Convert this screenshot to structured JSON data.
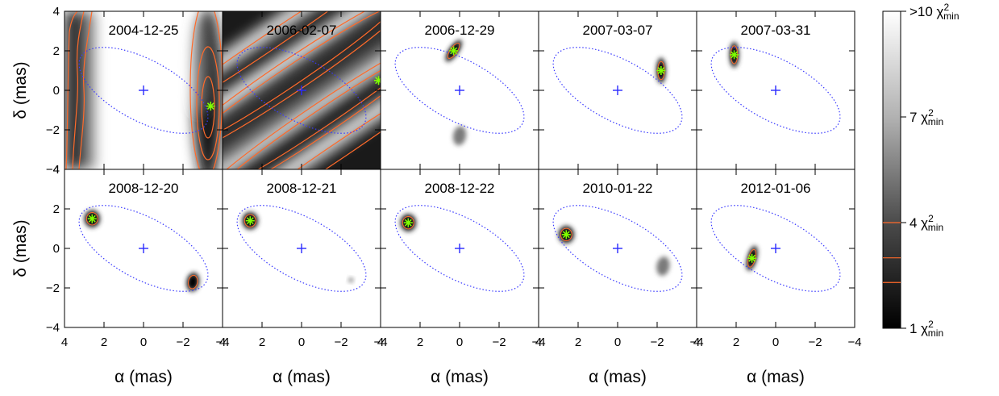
{
  "chart_data": {
    "type": "heatmap",
    "xlabel": "α (mas)",
    "ylabel": "δ (mas)",
    "xlim": [
      4,
      -4
    ],
    "ylim": [
      -4,
      4
    ],
    "xticks": [
      4,
      2,
      0,
      -2,
      -4
    ],
    "yticks": [
      -4,
      -2,
      0,
      2,
      4
    ],
    "orbit_ellipse": {
      "cx": 0,
      "cy": 0,
      "a": 3.6,
      "b": 1.55,
      "angle_deg": -28,
      "style": "dotted",
      "color": "#3a3aff"
    },
    "center_marker": {
      "x": 0,
      "y": 0,
      "symbol": "+",
      "color": "#2b2bff"
    },
    "best_fit_color": "#7fff00",
    "contour_color": "#ff6a2a",
    "colorbar": {
      "labels": [
        {
          "text": ">10 χ",
          "sup": "2",
          "sub": "min",
          "value": 10
        },
        {
          "text": "7 χ",
          "sup": "2",
          "sub": "min",
          "value": 7
        },
        {
          "text": "4 χ",
          "sup": "2",
          "sub": "min",
          "value": 4
        },
        {
          "text": "1 χ",
          "sup": "2",
          "sub": "min",
          "value": 1
        }
      ],
      "contour_levels": [
        2.3,
        3.0,
        4.0
      ]
    },
    "panels": [
      {
        "date": "2004-12-25",
        "best": [
          -3.4,
          -0.8
        ],
        "secondary": []
      },
      {
        "date": "2006-02-07",
        "best": [
          -3.9,
          0.5
        ],
        "secondary": []
      },
      {
        "date": "2006-12-29",
        "best": [
          0.3,
          2.0
        ],
        "secondary": [
          [
            0.0,
            -2.3
          ]
        ]
      },
      {
        "date": "2007-03-07",
        "best": [
          -2.2,
          1.0
        ],
        "secondary": []
      },
      {
        "date": "2007-03-31",
        "best": [
          2.1,
          1.8
        ],
        "secondary": []
      },
      {
        "date": "2008-12-20",
        "best": [
          2.6,
          1.5
        ],
        "secondary": [
          [
            -2.5,
            -1.7
          ]
        ]
      },
      {
        "date": "2008-12-21",
        "best": [
          2.6,
          1.4
        ],
        "secondary": [
          [
            -2.5,
            -1.6
          ]
        ]
      },
      {
        "date": "2008-12-22",
        "best": [
          2.6,
          1.3
        ],
        "secondary": []
      },
      {
        "date": "2010-01-22",
        "best": [
          2.6,
          0.7
        ],
        "secondary": [
          [
            -2.3,
            -0.9
          ]
        ]
      },
      {
        "date": "2012-01-06",
        "best": [
          1.2,
          -0.5
        ],
        "secondary": []
      }
    ]
  }
}
